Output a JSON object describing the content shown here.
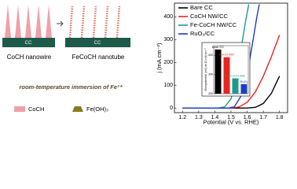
{
  "schematic": {
    "substrate": "CC",
    "left_label": "CoCH nanowire",
    "right_label": "FeCoCH nanotube",
    "process": "room-temperature immersion of Fe³⁺",
    "legend": [
      "CoCH",
      "Fe(OH)₃"
    ]
  },
  "chart_data": [
    {
      "type": "line",
      "xlabel": "Potential (V vs. RHE)",
      "ylabel": "j (mA cm⁻²)",
      "xlim": [
        1.15,
        1.85
      ],
      "xticks": [
        1.2,
        1.3,
        1.4,
        1.5,
        1.6,
        1.7,
        1.8
      ],
      "ylim": [
        -20,
        460
      ],
      "yticks": [
        0,
        100,
        200,
        300,
        400
      ],
      "legend": "upper left",
      "series": [
        {
          "name": "Bare CC",
          "color": "#000000",
          "x": [
            1.2,
            1.6,
            1.65,
            1.7,
            1.75,
            1.8
          ],
          "values": [
            0,
            0,
            3,
            20,
            65,
            140
          ]
        },
        {
          "name": "CoCH NW/CC",
          "color": "#e8251f",
          "x": [
            1.2,
            1.5,
            1.55,
            1.6,
            1.65,
            1.7,
            1.75,
            1.8
          ],
          "values": [
            0,
            0,
            5,
            25,
            70,
            140,
            225,
            320
          ]
        },
        {
          "name": "Fe-CoCH NW/CC",
          "color": "#1e9a8c",
          "x": [
            1.2,
            1.42,
            1.46,
            1.5,
            1.53,
            1.56,
            1.59,
            1.61
          ],
          "values": [
            0,
            0,
            5,
            40,
            120,
            250,
            380,
            455
          ]
        },
        {
          "name": "RuO₂/CC",
          "color": "#1f3fbf",
          "x": [
            1.2,
            1.48,
            1.52,
            1.56,
            1.6,
            1.63,
            1.66,
            1.675
          ],
          "values": [
            0,
            0,
            5,
            50,
            150,
            270,
            400,
            455
          ]
        }
      ]
    },
    {
      "type": "bar",
      "ylabel": "Overpotential (mV) at 10 mA cm⁻²",
      "categories": [
        "Bare CC",
        "CoCH NW",
        "Fe-CoCH NW",
        "RuO₂"
      ],
      "values": [
        430,
        390,
        280,
        250
      ],
      "colors": [
        "#000000",
        "#e8251f",
        "#1e9a8c",
        "#1f3fbf"
      ],
      "ylim": [
        200,
        450
      ],
      "yticks": [
        200,
        300,
        400
      ]
    }
  ]
}
